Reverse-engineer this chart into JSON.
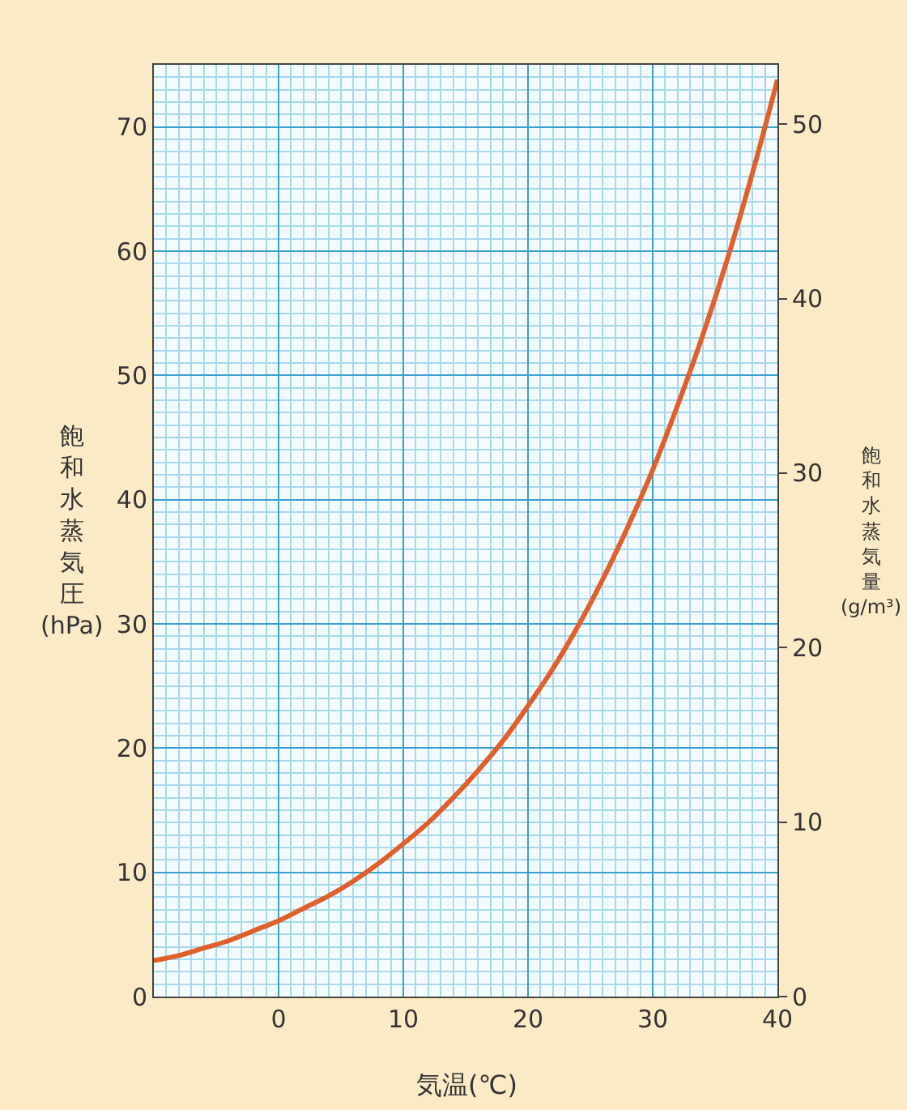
{
  "chart_data": {
    "type": "line",
    "xlabel": "気温(℃)",
    "ylabel": "飽和水蒸気圧(hPa)",
    "y2label": "飽和水蒸気量(g/m³)",
    "x": [
      -10,
      -8,
      -6,
      -4,
      -2,
      0,
      2,
      4,
      6,
      8,
      10,
      12,
      14,
      16,
      18,
      20,
      22,
      24,
      26,
      28,
      30,
      32,
      34,
      36,
      38,
      40
    ],
    "series": [
      {
        "color": "#e0602a",
        "values": [
          2.9,
          3.3,
          3.9,
          4.5,
          5.3,
          6.1,
          7.1,
          8.1,
          9.3,
          10.7,
          12.3,
          14.0,
          16.0,
          18.2,
          20.6,
          23.4,
          26.4,
          29.8,
          33.6,
          37.8,
          42.4,
          47.6,
          53.2,
          59.4,
          66.3,
          73.8
        ]
      }
    ],
    "xlim": [
      -10,
      40
    ],
    "xticks": [
      0,
      10,
      20,
      30,
      40
    ],
    "ylim": [
      0,
      75
    ],
    "yticks": [
      0,
      10,
      20,
      30,
      40,
      50,
      60,
      70
    ],
    "y2lim": [
      0,
      53.4
    ],
    "y2ticks": [
      0,
      10,
      20,
      30,
      40,
      50
    ],
    "grid": true,
    "legend": false,
    "marker": "none",
    "line_style": "solid"
  }
}
